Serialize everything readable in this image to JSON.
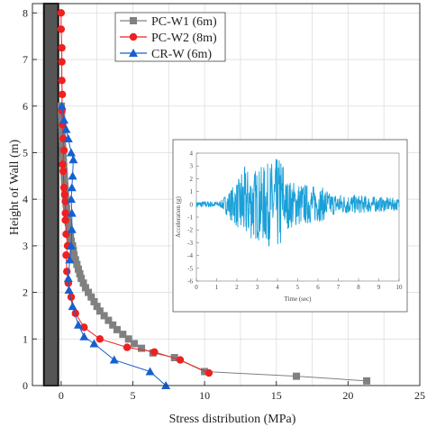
{
  "chart_data": {
    "type": "line",
    "xlabel": "Stress distribution (MPa)",
    "ylabel": "Height of Wall (m)",
    "xlim": [
      -2,
      25
    ],
    "ylim": [
      0,
      8.2
    ],
    "xticks": [
      0,
      5,
      10,
      15,
      20,
      25
    ],
    "yticks": [
      0,
      1,
      2,
      3,
      4,
      5,
      6,
      7,
      8
    ],
    "grid": true,
    "legend_position": "top-right",
    "wall_column": {
      "x_from": -1.2,
      "x_to": -0.2,
      "y_from": 0,
      "y_to": 8.2,
      "color": "#555555"
    },
    "series": [
      {
        "name": "PC-W1  (6m)",
        "marker": "square",
        "color": "#808080",
        "points": [
          [
            21.3,
            0.1
          ],
          [
            16.4,
            0.2
          ],
          [
            10.0,
            0.3
          ],
          [
            7.9,
            0.6
          ],
          [
            6.4,
            0.7
          ],
          [
            5.6,
            0.8
          ],
          [
            5.1,
            0.9
          ],
          [
            4.7,
            1.0
          ],
          [
            4.3,
            1.1
          ],
          [
            3.9,
            1.2
          ],
          [
            3.6,
            1.3
          ],
          [
            3.3,
            1.4
          ],
          [
            3.0,
            1.5
          ],
          [
            2.7,
            1.6
          ],
          [
            2.5,
            1.7
          ],
          [
            2.3,
            1.8
          ],
          [
            2.1,
            1.9
          ],
          [
            1.9,
            2.0
          ],
          [
            1.7,
            2.1
          ],
          [
            1.55,
            2.2
          ],
          [
            1.4,
            2.3
          ],
          [
            1.3,
            2.4
          ],
          [
            1.2,
            2.5
          ],
          [
            1.1,
            2.6
          ],
          [
            1.0,
            2.7
          ],
          [
            0.9,
            2.8
          ],
          [
            0.85,
            2.9
          ],
          [
            0.8,
            3.0
          ],
          [
            0.7,
            3.1
          ],
          [
            0.65,
            3.2
          ],
          [
            0.6,
            3.3
          ],
          [
            0.55,
            3.4
          ],
          [
            0.5,
            3.5
          ],
          [
            0.45,
            3.6
          ],
          [
            0.4,
            3.7
          ],
          [
            0.38,
            3.8
          ],
          [
            0.35,
            3.9
          ],
          [
            0.32,
            4.0
          ],
          [
            0.3,
            4.1
          ],
          [
            0.28,
            4.2
          ],
          [
            0.26,
            4.3
          ],
          [
            0.24,
            4.4
          ],
          [
            0.22,
            4.5
          ],
          [
            0.2,
            4.6
          ],
          [
            0.18,
            4.7
          ],
          [
            0.16,
            4.8
          ],
          [
            0.14,
            4.9
          ],
          [
            0.12,
            5.0
          ],
          [
            0.1,
            5.1
          ],
          [
            0.09,
            5.2
          ],
          [
            0.08,
            5.3
          ],
          [
            0.07,
            5.4
          ],
          [
            0.06,
            5.5
          ],
          [
            0.05,
            5.6
          ],
          [
            0.04,
            5.7
          ],
          [
            0.03,
            5.8
          ],
          [
            0.02,
            5.9
          ],
          [
            0.01,
            6.0
          ]
        ]
      },
      {
        "name": "PC-W2  (8m)",
        "marker": "circle",
        "color": "#ee2020",
        "points": [
          [
            10.3,
            0.27
          ],
          [
            8.3,
            0.55
          ],
          [
            6.5,
            0.72
          ],
          [
            4.6,
            0.82
          ],
          [
            2.7,
            1.0
          ],
          [
            1.6,
            1.25
          ],
          [
            1.0,
            1.55
          ],
          [
            0.7,
            1.9
          ],
          [
            0.5,
            2.2
          ],
          [
            0.4,
            2.45
          ],
          [
            0.35,
            2.8
          ],
          [
            0.45,
            3.0
          ],
          [
            0.35,
            3.25
          ],
          [
            0.3,
            3.55
          ],
          [
            0.3,
            3.7
          ],
          [
            0.3,
            3.95
          ],
          [
            0.25,
            4.1
          ],
          [
            0.2,
            4.25
          ],
          [
            0.15,
            4.6
          ],
          [
            0.1,
            4.75
          ],
          [
            0.2,
            5.05
          ],
          [
            0.15,
            5.3
          ],
          [
            0.1,
            5.6
          ],
          [
            0.05,
            5.9
          ],
          [
            0.08,
            6.25
          ],
          [
            0.05,
            6.55
          ],
          [
            0.05,
            6.95
          ],
          [
            0.05,
            7.25
          ],
          [
            0.0,
            7.65
          ],
          [
            0.0,
            8.0
          ]
        ]
      },
      {
        "name": "CR-W   (6m)",
        "marker": "triangle",
        "color": "#1560d0",
        "points": [
          [
            7.3,
            0.0
          ],
          [
            6.2,
            0.3
          ],
          [
            3.7,
            0.55
          ],
          [
            2.3,
            0.9
          ],
          [
            1.6,
            1.05
          ],
          [
            1.2,
            1.3
          ],
          [
            0.8,
            1.7
          ],
          [
            0.55,
            2.05
          ],
          [
            0.5,
            2.3
          ],
          [
            0.6,
            2.7
          ],
          [
            0.7,
            3.0
          ],
          [
            0.75,
            3.35
          ],
          [
            0.75,
            3.7
          ],
          [
            0.7,
            4.0
          ],
          [
            0.75,
            4.25
          ],
          [
            0.8,
            4.5
          ],
          [
            0.85,
            4.85
          ],
          [
            0.7,
            5.0
          ],
          [
            0.5,
            5.3
          ],
          [
            0.35,
            5.5
          ],
          [
            0.2,
            5.7
          ],
          [
            0.05,
            6.0
          ]
        ]
      }
    ],
    "inset": {
      "xlabel": "Time (sec)",
      "ylabel": "Acceleration (g)",
      "xlim": [
        0,
        10
      ],
      "ylim": [
        -6,
        4
      ],
      "xticks": [
        0,
        1,
        2,
        3,
        4,
        5,
        6,
        7,
        8,
        9,
        10
      ],
      "yticks": [
        4,
        3,
        2,
        1,
        0,
        -1,
        -2,
        -3,
        -4,
        -5,
        -6
      ],
      "color": "#1aa0d8"
    }
  }
}
